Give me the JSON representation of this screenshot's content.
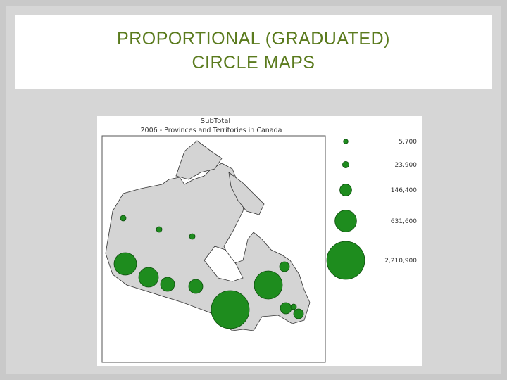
{
  "slide": {
    "title_lines": [
      "PROPORTIONAL (GRADUATED)",
      "CIRCLE MAPS"
    ]
  },
  "map": {
    "title": "SubTotal",
    "subtitle": "2006 - Provinces and Territories in Canada",
    "legend": [
      {
        "value": 5700,
        "label": "5,700"
      },
      {
        "value": 23900,
        "label": "23,900"
      },
      {
        "value": 146400,
        "label": "146,400"
      },
      {
        "value": 631600,
        "label": "631,600"
      },
      {
        "value": 2210900,
        "label": "2,210,900"
      }
    ]
  }
}
